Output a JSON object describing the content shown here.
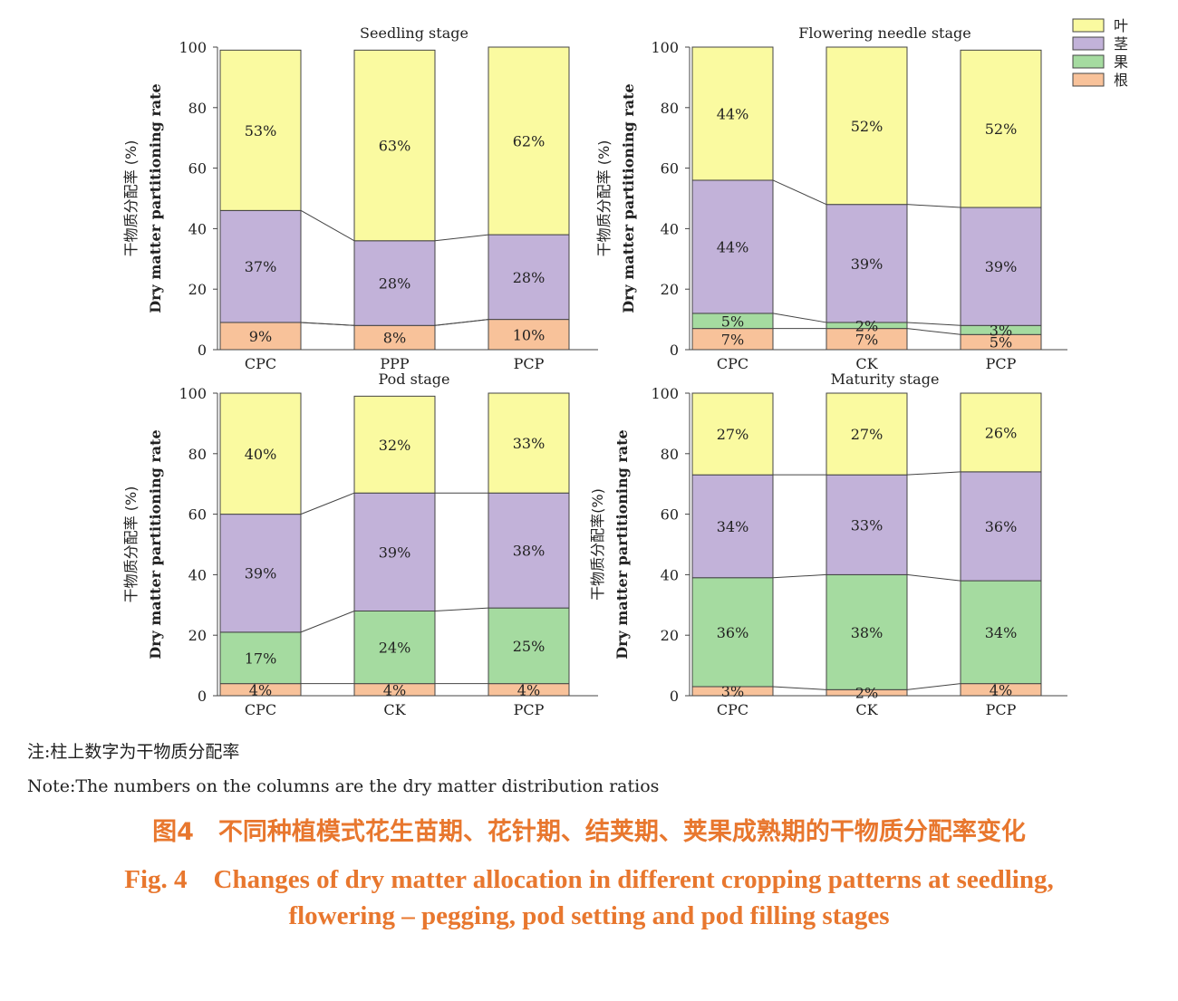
{
  "chart_data": [
    {
      "type": "bar",
      "stacked": true,
      "title": "Seedling stage",
      "categories": [
        "CPC",
        "PPP",
        "PCP"
      ],
      "series": [
        {
          "name": "根",
          "values": [
            9,
            8,
            10
          ],
          "labels": [
            "9%",
            "8%",
            "10%"
          ]
        },
        {
          "name": "果",
          "values": [
            0,
            0,
            0
          ],
          "labels": [
            "",
            "",
            ""
          ]
        },
        {
          "name": "茎",
          "values": [
            37,
            28,
            28
          ],
          "labels": [
            "37%",
            "28%",
            "28%"
          ]
        },
        {
          "name": "叶",
          "values": [
            53,
            63,
            62
          ],
          "labels": [
            "53%",
            "63%",
            "62%"
          ]
        }
      ],
      "ylabel": "干物质分配率 (%)",
      "ylabel2": "Dry matter partitioning rate",
      "ylim": [
        0,
        100
      ],
      "yticks": [
        "0",
        "20",
        "40",
        "60",
        "80",
        "100"
      ]
    },
    {
      "type": "bar",
      "stacked": true,
      "title": "Flowering needle stage",
      "categories": [
        "CPC",
        "CK",
        "PCP"
      ],
      "series": [
        {
          "name": "根",
          "values": [
            7,
            7,
            5
          ],
          "labels": [
            "7%",
            "7%",
            "5%"
          ]
        },
        {
          "name": "果",
          "values": [
            5,
            2,
            3
          ],
          "labels": [
            "5%",
            "2%",
            "3%"
          ]
        },
        {
          "name": "茎",
          "values": [
            44,
            39,
            39
          ],
          "labels": [
            "44%",
            "39%",
            "39%"
          ]
        },
        {
          "name": "叶",
          "values": [
            44,
            52,
            52
          ],
          "labels": [
            "44%",
            "52%",
            "52%"
          ]
        }
      ],
      "ylabel": "干物质分配率 (%)",
      "ylabel2": "Dry matter partitioning rate",
      "ylim": [
        0,
        100
      ],
      "yticks": [
        "0",
        "20",
        "40",
        "60",
        "80",
        "100"
      ]
    },
    {
      "type": "bar",
      "stacked": true,
      "title": "Pod stage",
      "categories": [
        "CPC",
        "CK",
        "PCP"
      ],
      "series": [
        {
          "name": "根",
          "values": [
            4,
            4,
            4
          ],
          "labels": [
            "4%",
            "4%",
            "4%"
          ]
        },
        {
          "name": "果",
          "values": [
            17,
            24,
            25
          ],
          "labels": [
            "17%",
            "24%",
            "25%"
          ]
        },
        {
          "name": "茎",
          "values": [
            39,
            39,
            38
          ],
          "labels": [
            "39%",
            "39%",
            "38%"
          ]
        },
        {
          "name": "叶",
          "values": [
            40,
            32,
            33
          ],
          "labels": [
            "40%",
            "32%",
            "33%"
          ]
        }
      ],
      "ylabel": "干物质分配率 (%)",
      "ylabel2": "Dry matter partitioning rate",
      "ylim": [
        0,
        100
      ],
      "yticks": [
        "0",
        "20",
        "40",
        "60",
        "80",
        "100"
      ]
    },
    {
      "type": "bar",
      "stacked": true,
      "title": "Maturity stage",
      "categories": [
        "CPC",
        "CK",
        "PCP"
      ],
      "series": [
        {
          "name": "根",
          "values": [
            3,
            2,
            4
          ],
          "labels": [
            "3%",
            "2%",
            "4%"
          ]
        },
        {
          "name": "果",
          "values": [
            36,
            38,
            34
          ],
          "labels": [
            "36%",
            "38%",
            "34%"
          ]
        },
        {
          "name": "茎",
          "values": [
            34,
            33,
            36
          ],
          "labels": [
            "34%",
            "33%",
            "36%"
          ]
        },
        {
          "name": "叶",
          "values": [
            27,
            27,
            26
          ],
          "labels": [
            "27%",
            "27%",
            "26%"
          ]
        }
      ],
      "ylabel": "干物质分配率(%)",
      "ylabel2": "Dry matter partitioning rate",
      "ylim": [
        0,
        100
      ],
      "yticks": [
        "0",
        "20",
        "40",
        "60",
        "80",
        "100"
      ]
    }
  ],
  "legend": {
    "position": "top-right",
    "items": [
      {
        "name": "叶",
        "color": "#fafaa0"
      },
      {
        "name": "茎",
        "color": "#c2b2d9"
      },
      {
        "name": "果",
        "color": "#a5dba0"
      },
      {
        "name": "根",
        "color": "#f8c29a"
      }
    ]
  },
  "colors": {
    "根": "#f8c29a",
    "果": "#a5dba0",
    "茎": "#c2b2d9",
    "叶": "#fafaa0",
    "caption": "#e8772e"
  },
  "caption": {
    "note_cn": "注:柱上数字为干物质分配率",
    "note_en": "Note:The numbers on the columns are the dry matter distribution ratios",
    "title_cn": "图4　不同种植模式花生苗期、花针期、结荚期、荚果成熟期的干物质分配率变化",
    "title_en_line1": "Fig. 4　Changes of dry matter allocation in different cropping patterns at seedling,",
    "title_en_line2": "flowering – pegging, pod setting and pod filling stages"
  }
}
